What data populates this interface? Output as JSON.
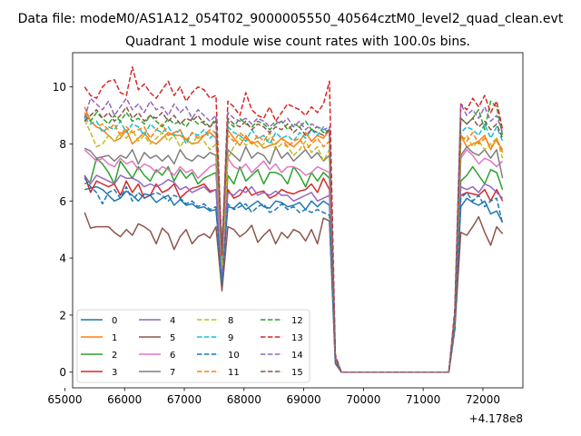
{
  "chart_data": {
    "type": "line",
    "suptitle": "Data file: modeM0/AS1A12_054T02_9000005550_40564cztM0_level2_quad_clean.evt",
    "title": "Quadrant 1 module wise count rates with 100.0s bins.",
    "xlabel": "",
    "ylabel": "",
    "x_offset_label": "+4.178e8",
    "xlim": [
      65130,
      72670
    ],
    "ylim": [
      -0.55,
      11.2
    ],
    "xticks": [
      65000,
      66000,
      67000,
      68000,
      69000,
      70000,
      71000,
      72000
    ],
    "yticks": [
      0,
      2,
      4,
      6,
      8,
      10
    ],
    "grid": false,
    "legend_position": "lower-left",
    "x_start": 65330,
    "x_step": 100,
    "series": [
      {
        "name": "0",
        "color": "#1f77b4",
        "dash": "solid",
        "values": [
          6.4,
          6.45,
          6.5,
          6.4,
          6.2,
          6.0,
          6.1,
          6.35,
          6.2,
          6.0,
          6.25,
          6.2,
          5.95,
          6.1,
          6.2,
          5.85,
          6.05,
          5.85,
          5.9,
          5.75,
          5.8,
          5.65,
          5.7,
          3.3,
          5.8,
          5.75,
          5.95,
          5.7,
          5.85,
          6.0,
          5.8,
          5.75,
          6.0,
          5.95,
          5.8,
          5.85,
          5.95,
          5.7,
          6.0,
          5.8,
          6.0,
          5.85,
          0.4,
          0,
          0,
          0,
          0,
          0,
          0,
          0,
          0,
          0,
          0,
          0,
          0,
          0,
          0,
          0,
          0,
          0,
          0,
          0,
          1.6,
          5.8,
          6.1,
          5.95,
          5.85,
          6.0,
          5.55,
          5.65,
          5.25
        ]
      },
      {
        "name": "1",
        "color": "#ff7f0e",
        "dash": "solid",
        "values": [
          9.3,
          8.8,
          8.6,
          8.5,
          8.3,
          8.1,
          8.2,
          8.5,
          8.0,
          8.2,
          8.4,
          8.1,
          8.0,
          8.2,
          8.4,
          8.3,
          8.3,
          8.15,
          8.0,
          8.05,
          8.3,
          8.4,
          8.2,
          4.3,
          8.5,
          8.2,
          7.95,
          8.3,
          8.0,
          8.1,
          7.85,
          7.95,
          8.0,
          8.2,
          8.05,
          7.9,
          8.1,
          8.4,
          8.1,
          8.3,
          8.2,
          8.5,
          0.5,
          0,
          0,
          0,
          0,
          0,
          0,
          0,
          0,
          0,
          0,
          0,
          0,
          0,
          0,
          0,
          0,
          0,
          0,
          0,
          2.0,
          8.3,
          7.9,
          8.0,
          8.1,
          8.3,
          7.8,
          8.2,
          7.7
        ]
      },
      {
        "name": "2",
        "color": "#2ca02c",
        "dash": "solid",
        "values": [
          6.6,
          6.7,
          7.5,
          7.3,
          7.0,
          6.6,
          7.4,
          7.1,
          6.8,
          7.2,
          6.9,
          6.7,
          7.1,
          6.9,
          7.2,
          6.7,
          7.1,
          6.8,
          7.0,
          6.6,
          6.8,
          6.9,
          7.0,
          3.7,
          6.9,
          6.6,
          7.2,
          6.7,
          6.9,
          7.1,
          6.6,
          7.0,
          7.0,
          6.9,
          6.6,
          7.2,
          6.9,
          6.5,
          7.0,
          6.7,
          7.0,
          6.8,
          0.5,
          0,
          0,
          0,
          0,
          0,
          0,
          0,
          0,
          0,
          0,
          0,
          0,
          0,
          0,
          0,
          0,
          0,
          0,
          0,
          1.7,
          6.7,
          6.9,
          7.2,
          6.9,
          6.6,
          7.1,
          7.0,
          6.4
        ]
      },
      {
        "name": "3",
        "color": "#d62728",
        "dash": "solid",
        "values": [
          6.9,
          6.3,
          6.7,
          6.6,
          6.5,
          6.6,
          6.2,
          6.7,
          6.3,
          6.6,
          6.1,
          6.2,
          6.6,
          6.3,
          6.4,
          6.6,
          6.1,
          6.3,
          6.45,
          6.5,
          6.6,
          6.35,
          6.4,
          3.5,
          6.4,
          6.1,
          6.2,
          6.5,
          6.2,
          6.3,
          6.35,
          6.1,
          6.2,
          6.4,
          6.3,
          6.25,
          6.35,
          6.4,
          6.6,
          6.3,
          6.8,
          6.4,
          0.5,
          0,
          0,
          0,
          0,
          0,
          0,
          0,
          0,
          0,
          0,
          0,
          0,
          0,
          0,
          0,
          0,
          0,
          0,
          0,
          1.75,
          6.2,
          6.3,
          6.25,
          6.2,
          6.4,
          6.0,
          6.4,
          6.0
        ]
      },
      {
        "name": "4",
        "color": "#9467bd",
        "dash": "solid",
        "values": [
          6.9,
          6.6,
          6.9,
          6.8,
          6.7,
          6.6,
          6.9,
          6.8,
          6.8,
          6.7,
          6.5,
          6.6,
          6.5,
          6.6,
          6.75,
          6.65,
          6.4,
          6.5,
          6.3,
          6.4,
          6.5,
          6.3,
          6.4,
          3.4,
          6.3,
          6.2,
          6.4,
          6.3,
          6.5,
          6.2,
          6.3,
          6.2,
          6.35,
          6.2,
          6.2,
          6.0,
          6.1,
          6.2,
          6.3,
          6.0,
          6.1,
          6.2,
          0.4,
          0,
          0,
          0,
          0,
          0,
          0,
          0,
          0,
          0,
          0,
          0,
          0,
          0,
          0,
          0,
          0,
          0,
          0,
          0,
          1.8,
          6.5,
          6.4,
          6.5,
          6.3,
          6.6,
          6.5,
          6.3,
          6.1
        ]
      },
      {
        "name": "5",
        "color": "#8c564b",
        "dash": "solid",
        "values": [
          5.6,
          5.05,
          5.1,
          5.1,
          5.1,
          4.9,
          4.75,
          5.0,
          4.8,
          5.2,
          5.1,
          4.95,
          4.5,
          5.05,
          4.85,
          4.3,
          4.75,
          5.0,
          4.5,
          4.75,
          4.85,
          4.7,
          5.1,
          2.85,
          5.1,
          5.0,
          4.75,
          4.9,
          5.15,
          4.55,
          4.8,
          5.0,
          4.5,
          4.9,
          4.7,
          5.0,
          4.9,
          4.6,
          5.0,
          4.5,
          5.4,
          5.3,
          0.3,
          0,
          0,
          0,
          0,
          0,
          0,
          0,
          0,
          0,
          0,
          0,
          0,
          0,
          0,
          0,
          0,
          0,
          0,
          0,
          1.5,
          4.9,
          4.8,
          5.1,
          5.45,
          4.9,
          4.45,
          5.1,
          4.85
        ]
      },
      {
        "name": "6",
        "color": "#e377c2",
        "dash": "solid",
        "values": [
          7.8,
          7.6,
          7.4,
          7.5,
          7.3,
          7.2,
          7.5,
          7.3,
          7.4,
          7.1,
          7.3,
          7.2,
          7.0,
          7.2,
          7.1,
          6.9,
          7.2,
          7.0,
          7.1,
          6.8,
          7.0,
          7.2,
          7.3,
          3.6,
          7.5,
          7.2,
          7.1,
          7.3,
          7.0,
          7.2,
          7.4,
          7.1,
          7.3,
          7.0,
          7.2,
          7.2,
          7.1,
          6.9,
          7.0,
          7.2,
          7.1,
          7.0,
          0.45,
          0,
          0,
          0,
          0,
          0,
          0,
          0,
          0,
          0,
          0,
          0,
          0,
          0,
          0,
          0,
          0,
          0,
          0,
          0,
          1.7,
          7.5,
          7.8,
          7.6,
          7.3,
          7.5,
          7.4,
          7.2,
          7.4
        ]
      },
      {
        "name": "7",
        "color": "#7f7f7f",
        "dash": "solid",
        "values": [
          7.85,
          7.75,
          7.5,
          7.55,
          7.6,
          7.4,
          7.6,
          7.5,
          7.8,
          7.3,
          7.7,
          7.5,
          7.6,
          7.4,
          7.6,
          7.3,
          7.8,
          7.5,
          7.4,
          7.6,
          7.5,
          7.7,
          7.6,
          3.9,
          7.8,
          7.6,
          7.4,
          7.9,
          7.5,
          7.7,
          7.6,
          7.3,
          7.9,
          7.5,
          7.7,
          7.4,
          7.6,
          7.8,
          7.5,
          7.7,
          7.4,
          7.6,
          0.5,
          0,
          0,
          0,
          0,
          0,
          0,
          0,
          0,
          0,
          0,
          0,
          0,
          0,
          0,
          0,
          0,
          0,
          0,
          0,
          1.8,
          7.6,
          7.9,
          7.7,
          7.6,
          7.8,
          7.5,
          7.8,
          6.8
        ]
      },
      {
        "name": "8",
        "color": "#bcbd22",
        "dash": "dashed",
        "values": [
          8.85,
          8.4,
          7.9,
          8.0,
          8.3,
          8.1,
          8.4,
          8.2,
          8.5,
          8.1,
          8.3,
          8.0,
          8.2,
          8.4,
          8.1,
          8.3,
          7.9,
          8.2,
          8.0,
          8.3,
          8.1,
          7.8,
          8.0,
          3.7,
          7.5,
          7.9,
          8.2,
          7.95,
          8.1,
          7.9,
          8.0,
          8.2,
          7.8,
          8.0,
          7.9,
          7.6,
          7.8,
          8.1,
          7.7,
          7.9,
          7.4,
          7.8,
          0.45,
          0,
          0,
          0,
          0,
          0,
          0,
          0,
          0,
          0,
          0,
          0,
          0,
          0,
          0,
          0,
          0,
          0,
          0,
          0,
          1.9,
          8.0,
          8.3,
          7.9,
          8.1,
          7.8,
          8.0,
          8.2,
          7.5
        ]
      },
      {
        "name": "9",
        "color": "#17becf",
        "dash": "dashed",
        "values": [
          8.9,
          8.7,
          8.8,
          8.4,
          8.6,
          8.5,
          8.8,
          8.4,
          8.7,
          8.6,
          8.3,
          8.7,
          8.5,
          8.4,
          8.6,
          8.3,
          8.5,
          8.0,
          8.4,
          8.3,
          8.5,
          8.2,
          8.4,
          4.0,
          8.6,
          8.4,
          8.3,
          8.1,
          8.5,
          8.2,
          8.3,
          8.0,
          8.4,
          8.2,
          8.3,
          8.1,
          8.4,
          8.2,
          8.5,
          8.3,
          8.6,
          8.3,
          0.5,
          0,
          0,
          0,
          0,
          0,
          0,
          0,
          0,
          0,
          0,
          0,
          0,
          0,
          0,
          0,
          0,
          0,
          0,
          0,
          1.8,
          8.4,
          8.6,
          8.5,
          8.3,
          8.7,
          8.2,
          8.6,
          8.1
        ]
      },
      {
        "name": "10",
        "color": "#1f77b4",
        "dash": "dashed",
        "values": [
          6.8,
          6.5,
          6.3,
          5.9,
          6.3,
          6.4,
          6.1,
          6.5,
          6.0,
          6.3,
          6.1,
          6.2,
          6.3,
          6.2,
          6.0,
          6.2,
          6.1,
          5.9,
          6.0,
          5.8,
          5.9,
          5.7,
          5.8,
          3.1,
          5.9,
          5.7,
          5.8,
          5.9,
          5.6,
          5.8,
          5.9,
          5.6,
          5.7,
          5.9,
          5.7,
          5.8,
          5.6,
          5.7,
          5.6,
          5.7,
          5.6,
          5.5,
          0.35,
          0,
          0,
          0,
          0,
          0,
          0,
          0,
          0,
          0,
          0,
          0,
          0,
          0,
          0,
          0,
          0,
          0,
          0,
          0,
          1.5,
          6.1,
          6.3,
          6.0,
          6.2,
          5.8,
          6.0,
          6.1,
          5.2
        ]
      },
      {
        "name": "11",
        "color": "#ff7f0e",
        "dash": "dashed",
        "values": [
          9.1,
          8.8,
          8.6,
          8.7,
          8.5,
          8.7,
          8.3,
          8.6,
          8.4,
          8.5,
          8.6,
          8.2,
          8.5,
          8.7,
          8.3,
          8.4,
          8.5,
          8.1,
          8.4,
          8.2,
          8.3,
          8.5,
          8.4,
          4.1,
          8.3,
          8.1,
          8.4,
          8.2,
          8.0,
          8.3,
          8.1,
          8.4,
          8.0,
          8.2,
          7.9,
          8.1,
          8.2,
          7.8,
          8.0,
          8.2,
          7.9,
          8.1,
          0.5,
          0,
          0,
          0,
          0,
          0,
          0,
          0,
          0,
          0,
          0,
          0,
          0,
          0,
          0,
          0,
          0,
          0,
          0,
          0,
          1.9,
          8.3,
          8.1,
          8.4,
          8.0,
          8.2,
          7.9,
          8.1,
          7.8
        ]
      },
      {
        "name": "12",
        "color": "#2ca02c",
        "dash": "dashed",
        "values": [
          9.0,
          8.8,
          9.1,
          8.9,
          8.7,
          9.0,
          8.8,
          9.1,
          8.8,
          8.9,
          8.7,
          9.0,
          8.8,
          8.6,
          8.9,
          8.7,
          8.8,
          8.6,
          8.9,
          8.7,
          8.8,
          8.6,
          8.9,
          4.3,
          8.8,
          8.6,
          8.9,
          8.7,
          8.6,
          8.8,
          8.7,
          8.5,
          8.7,
          8.8,
          8.5,
          8.7,
          8.6,
          8.8,
          8.5,
          8.6,
          8.4,
          8.5,
          0.5,
          0,
          0,
          0,
          0,
          0,
          0,
          0,
          0,
          0,
          0,
          0,
          0,
          0,
          0,
          0,
          0,
          0,
          0,
          0,
          2.0,
          8.9,
          8.7,
          8.9,
          9.2,
          8.5,
          9.5,
          9.3,
          8.3
        ]
      },
      {
        "name": "13",
        "color": "#d62728",
        "dash": "dashed",
        "values": [
          10.0,
          9.7,
          9.6,
          10.0,
          10.2,
          10.25,
          9.8,
          9.7,
          10.7,
          9.9,
          10.1,
          9.8,
          9.6,
          9.9,
          10.2,
          9.7,
          10.0,
          9.5,
          9.8,
          10.0,
          9.9,
          9.6,
          9.7,
          4.1,
          9.5,
          9.3,
          9.0,
          9.8,
          9.2,
          9.0,
          8.9,
          9.3,
          8.8,
          9.1,
          9.4,
          9.3,
          9.2,
          9.0,
          9.3,
          9.1,
          9.4,
          10.2,
          0.6,
          0,
          0,
          0,
          0,
          0,
          0,
          0,
          0,
          0,
          0,
          0,
          0,
          0,
          0,
          0,
          0,
          0,
          0,
          0,
          2.2,
          9.4,
          9.2,
          9.6,
          9.3,
          9.7,
          9.1,
          9.5,
          8.5
        ]
      },
      {
        "name": "14",
        "color": "#9467bd",
        "dash": "dashed",
        "values": [
          8.9,
          9.6,
          9.4,
          9.2,
          9.5,
          9.0,
          9.3,
          9.6,
          9.2,
          9.4,
          9.1,
          9.5,
          9.2,
          9.3,
          9.0,
          9.4,
          9.1,
          9.3,
          8.9,
          9.2,
          9.0,
          8.8,
          9.0,
          4.2,
          9.1,
          8.9,
          8.8,
          8.9,
          8.7,
          8.9,
          8.8,
          8.6,
          8.8,
          8.7,
          8.9,
          8.6,
          8.8,
          8.5,
          8.7,
          8.6,
          8.5,
          8.6,
          0.55,
          0,
          0,
          0,
          0,
          0,
          0,
          0,
          0,
          0,
          0,
          0,
          0,
          0,
          0,
          0,
          0,
          0,
          0,
          0,
          2.1,
          9.4,
          9.0,
          9.2,
          8.9,
          9.3,
          8.8,
          9.0,
          8.4
        ]
      },
      {
        "name": "15",
        "color": "#8c564b",
        "dash": "dashed",
        "values": [
          8.8,
          9.0,
          9.2,
          8.9,
          9.1,
          8.8,
          9.0,
          9.3,
          8.9,
          9.1,
          8.8,
          9.0,
          8.9,
          9.1,
          8.8,
          9.0,
          8.7,
          8.9,
          8.8,
          9.0,
          8.7,
          8.6,
          8.8,
          4.2,
          8.9,
          8.7,
          8.6,
          8.8,
          8.5,
          8.7,
          8.6,
          8.4,
          8.6,
          8.5,
          8.7,
          8.4,
          8.6,
          8.3,
          8.5,
          8.4,
          8.3,
          8.5,
          0.5,
          0,
          0,
          0,
          0,
          0,
          0,
          0,
          0,
          0,
          0,
          0,
          0,
          0,
          0,
          0,
          0,
          0,
          0,
          0,
          2.0,
          8.9,
          8.7,
          8.9,
          8.6,
          8.8,
          8.5,
          8.7,
          8.2
        ]
      }
    ]
  }
}
